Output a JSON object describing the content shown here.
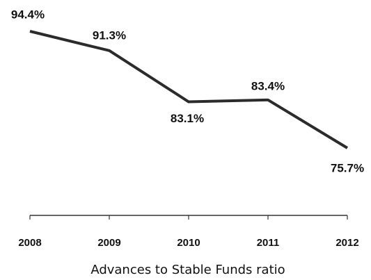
{
  "chart_data": {
    "type": "line",
    "title": "Advances to Stable Funds ratio",
    "categories": [
      "2008",
      "2009",
      "2010",
      "2011",
      "2012"
    ],
    "values": [
      94.4,
      91.3,
      83.1,
      83.4,
      75.7
    ],
    "value_labels": [
      "94.4%",
      "91.3%",
      "83.1%",
      "83.4%",
      "75.7%"
    ],
    "color": "#2b2b2b"
  }
}
